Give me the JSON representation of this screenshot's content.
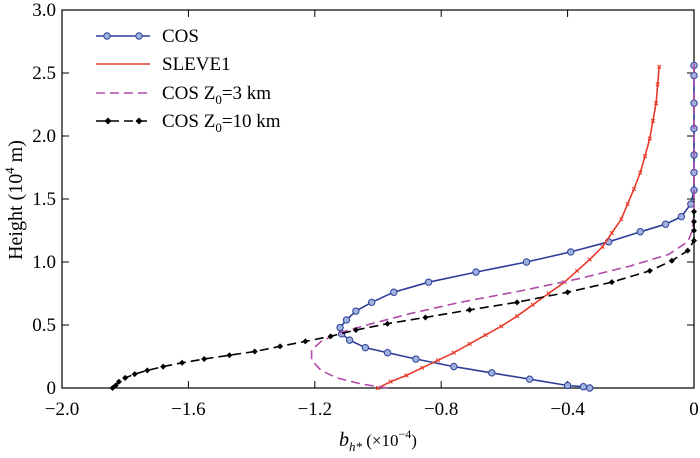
{
  "chart_data": {
    "type": "line",
    "title": "",
    "xlabel": {
      "main": "b",
      "sub": "h*",
      "unit": "(×10",
      "exp": "−4",
      "close": ")"
    },
    "ylabel": {
      "main": "Height",
      "unit": "(10",
      "exp": "4",
      "tail": " m)"
    },
    "xlim": [
      -2.0,
      0.0
    ],
    "ylim": [
      0.0,
      3.0
    ],
    "x_ticks": [
      -2.0,
      -1.6,
      -1.2,
      -0.8,
      -0.4,
      0.0
    ],
    "x_tick_labels": [
      "−2.0",
      "−1.6",
      "−1.2",
      "−0.8",
      "−0.4",
      "0"
    ],
    "y_ticks": [
      0.0,
      0.5,
      1.0,
      1.5,
      2.0,
      2.5,
      3.0
    ],
    "y_tick_labels": [
      "0",
      "0.5",
      "1.0",
      "1.5",
      "2.0",
      "2.5",
      "3.0"
    ],
    "legend_position": "top-left",
    "series": [
      {
        "name": "COS",
        "legend_parts": {
          "main": "COS"
        },
        "color": "#2e3f9a",
        "style": "solid",
        "marker": "circle",
        "points": [
          [
            -0.33,
            0.0
          ],
          [
            -0.35,
            0.01
          ],
          [
            -0.4,
            0.02
          ],
          [
            -0.52,
            0.07
          ],
          [
            -0.64,
            0.12
          ],
          [
            -0.76,
            0.17
          ],
          [
            -0.88,
            0.23
          ],
          [
            -0.97,
            0.28
          ],
          [
            -1.04,
            0.32
          ],
          [
            -1.09,
            0.38
          ],
          [
            -1.115,
            0.43
          ],
          [
            -1.12,
            0.48
          ],
          [
            -1.1,
            0.54
          ],
          [
            -1.07,
            0.61
          ],
          [
            -1.02,
            0.68
          ],
          [
            -0.95,
            0.76
          ],
          [
            -0.84,
            0.84
          ],
          [
            -0.69,
            0.92
          ],
          [
            -0.53,
            1.0
          ],
          [
            -0.39,
            1.08
          ],
          [
            -0.27,
            1.16
          ],
          [
            -0.17,
            1.24
          ],
          [
            -0.09,
            1.3
          ],
          [
            -0.04,
            1.36
          ],
          [
            -0.01,
            1.46
          ],
          [
            0.0,
            1.57
          ],
          [
            0.0,
            1.71
          ],
          [
            0.0,
            1.85
          ],
          [
            0.0,
            2.06
          ],
          [
            0.0,
            2.26
          ],
          [
            0.0,
            2.48
          ],
          [
            0.0,
            2.56
          ]
        ]
      },
      {
        "name": "SLEVE1",
        "legend_parts": {
          "main": "SLEVE1"
        },
        "color": "#e83a2a",
        "style": "solid",
        "marker": "x",
        "points": [
          [
            -1.0,
            0.0
          ],
          [
            -0.96,
            0.05
          ],
          [
            -0.91,
            0.1
          ],
          [
            -0.86,
            0.16
          ],
          [
            -0.81,
            0.22
          ],
          [
            -0.76,
            0.28
          ],
          [
            -0.71,
            0.35
          ],
          [
            -0.66,
            0.42
          ],
          [
            -0.61,
            0.49
          ],
          [
            -0.56,
            0.57
          ],
          [
            -0.51,
            0.66
          ],
          [
            -0.46,
            0.75
          ],
          [
            -0.41,
            0.84
          ],
          [
            -0.37,
            0.93
          ],
          [
            -0.33,
            1.02
          ],
          [
            -0.29,
            1.12
          ],
          [
            -0.26,
            1.23
          ],
          [
            -0.23,
            1.34
          ],
          [
            -0.21,
            1.46
          ],
          [
            -0.19,
            1.58
          ],
          [
            -0.17,
            1.71
          ],
          [
            -0.155,
            1.84
          ],
          [
            -0.14,
            1.98
          ],
          [
            -0.13,
            2.12
          ],
          [
            -0.12,
            2.26
          ],
          [
            -0.115,
            2.41
          ],
          [
            -0.11,
            2.55
          ]
        ]
      },
      {
        "name": "COS Z0=3 km",
        "legend_parts": {
          "main": "COS  Z",
          "sub": "0",
          "tail": "=3 km"
        },
        "color": "#b04ca7",
        "style": "dashed",
        "marker": "none",
        "points": [
          [
            -0.97,
            0.0
          ],
          [
            -1.05,
            0.03
          ],
          [
            -1.13,
            0.08
          ],
          [
            -1.18,
            0.14
          ],
          [
            -1.21,
            0.22
          ],
          [
            -1.21,
            0.3
          ],
          [
            -1.18,
            0.37
          ],
          [
            -1.12,
            0.44
          ],
          [
            -1.02,
            0.51
          ],
          [
            -0.9,
            0.59
          ],
          [
            -0.74,
            0.68
          ],
          [
            -0.55,
            0.77
          ],
          [
            -0.36,
            0.87
          ],
          [
            -0.2,
            0.97
          ],
          [
            -0.08,
            1.06
          ],
          [
            -0.02,
            1.16
          ],
          [
            -0.005,
            1.25
          ],
          [
            0.0,
            1.4
          ],
          [
            0.0,
            2.6
          ]
        ]
      },
      {
        "name": "COS Z0=10 km",
        "legend_parts": {
          "main": "COS  Z",
          "sub": "0",
          "tail": "=10 km"
        },
        "color": "#000000",
        "style": "dashed",
        "marker": "diamond",
        "points": [
          [
            -1.84,
            0.0
          ],
          [
            -1.83,
            0.02
          ],
          [
            -1.82,
            0.05
          ],
          [
            -1.8,
            0.08
          ],
          [
            -1.77,
            0.11
          ],
          [
            -1.73,
            0.14
          ],
          [
            -1.68,
            0.17
          ],
          [
            -1.62,
            0.2
          ],
          [
            -1.55,
            0.23
          ],
          [
            -1.47,
            0.26
          ],
          [
            -1.39,
            0.29
          ],
          [
            -1.31,
            0.33
          ],
          [
            -1.23,
            0.37
          ],
          [
            -1.15,
            0.41
          ],
          [
            -1.07,
            0.46
          ],
          [
            -0.97,
            0.51
          ],
          [
            -0.85,
            0.56
          ],
          [
            -0.71,
            0.62
          ],
          [
            -0.56,
            0.68
          ],
          [
            -0.4,
            0.76
          ],
          [
            -0.26,
            0.84
          ],
          [
            -0.14,
            0.93
          ],
          [
            -0.07,
            1.01
          ],
          [
            -0.02,
            1.09
          ],
          [
            0.0,
            1.17
          ],
          [
            0.0,
            1.25
          ],
          [
            0.0,
            1.32
          ],
          [
            0.0,
            1.4
          ]
        ]
      }
    ]
  }
}
